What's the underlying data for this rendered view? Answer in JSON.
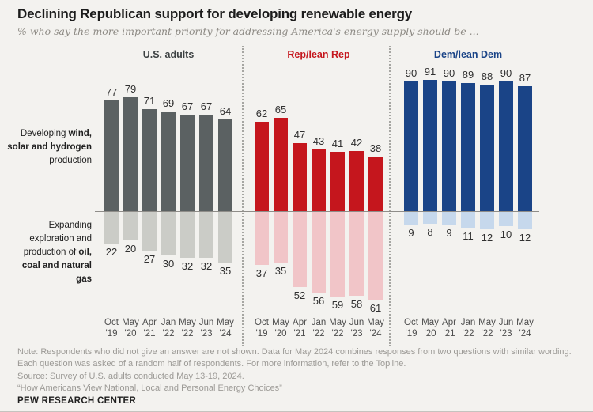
{
  "title": "Declining Republican support for developing renewable energy",
  "subtitle": "% who say the more important priority for addressing America's energy supply should be ...",
  "row_labels": {
    "top": {
      "pre": "Developing ",
      "bold": "wind, solar and hydrogen",
      "post": " production"
    },
    "bottom": {
      "pre": "Expanding exploration and production of ",
      "bold": "oil, coal and natural gas",
      "post": ""
    }
  },
  "chart_data": {
    "type": "bar",
    "orientation": "diverging",
    "categories": [
      "Oct '19",
      "May '20",
      "Apr '21",
      "Jan '22",
      "May '22",
      "Jun '23",
      "May '24"
    ],
    "row_series": [
      "Developing wind, solar and hydrogen production",
      "Expanding exploration and production of oil, coal and natural gas"
    ],
    "ylim": [
      -70,
      95
    ],
    "grid": false,
    "groups": [
      {
        "label": "U.S. adults",
        "header_color": "#3c4142",
        "top": {
          "color": "#5b6162",
          "values": [
            77,
            79,
            71,
            69,
            67,
            67,
            64
          ]
        },
        "bottom": {
          "color": "#cbccc7",
          "values": [
            22,
            20,
            27,
            30,
            32,
            32,
            35
          ]
        }
      },
      {
        "label": "Rep/lean Rep",
        "header_color": "#c5161d",
        "top": {
          "color": "#c5161d",
          "values": [
            62,
            65,
            47,
            43,
            41,
            42,
            38
          ]
        },
        "bottom": {
          "color": "#f1c5c8",
          "values": [
            37,
            35,
            52,
            56,
            59,
            58,
            61
          ]
        }
      },
      {
        "label": "Dem/lean Dem",
        "header_color": "#1a4487",
        "top": {
          "color": "#1a4487",
          "values": [
            90,
            91,
            90,
            89,
            88,
            90,
            87
          ]
        },
        "bottom": {
          "color": "#c6d8ec",
          "values": [
            9,
            8,
            9,
            11,
            12,
            10,
            12
          ]
        }
      }
    ]
  },
  "notes": {
    "note": "Note: Respondents who did not give an answer are not shown. Data for May 2024 combines responses from two questions with similar wording. Each question was asked of a random half of respondents. For more information, refer to the Topline.",
    "source": "Source: Survey of U.S. adults conducted May 13-19, 2024.",
    "report": "“How Americans View National, Local and Personal Energy Choices”"
  },
  "footer": {
    "brand": "PEW RESEARCH CENTER"
  }
}
